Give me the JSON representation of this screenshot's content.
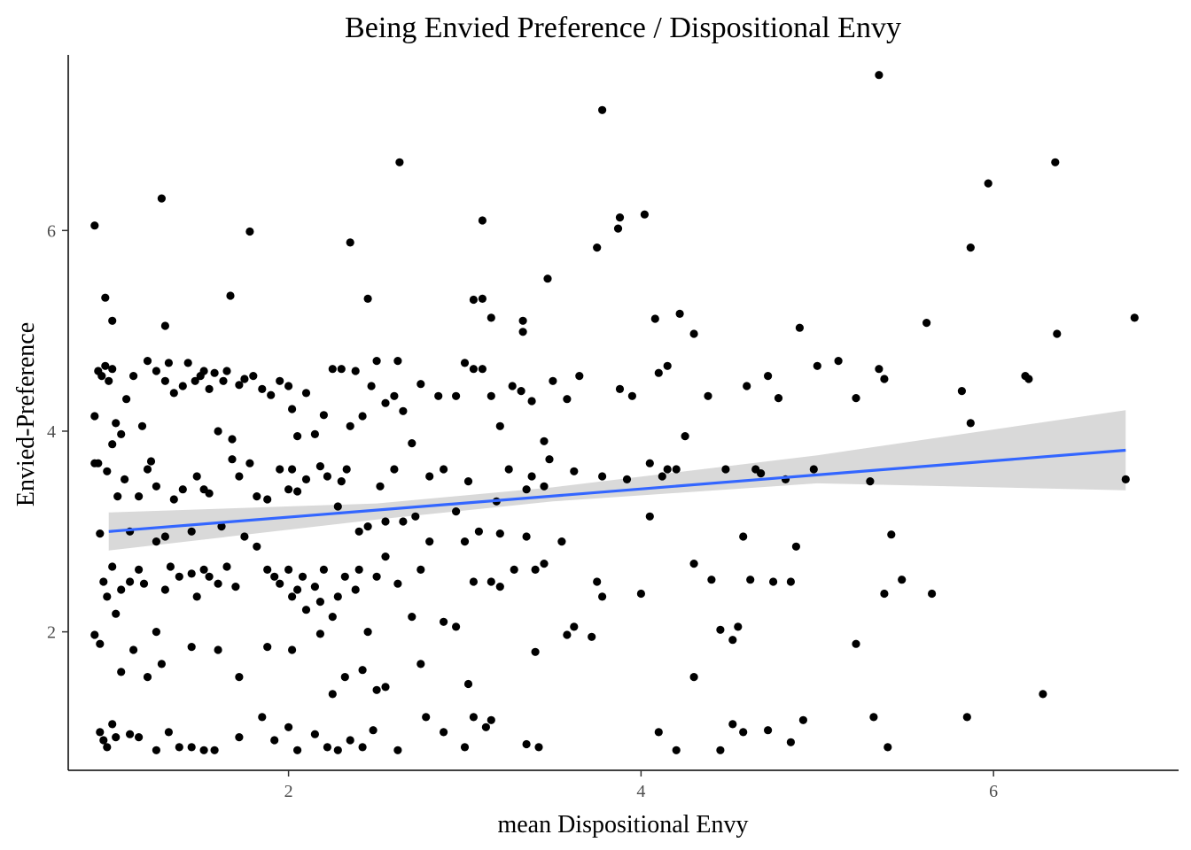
{
  "chart_data": {
    "type": "scatter",
    "title": "Being Envied Preference / Dispositional Envy",
    "xlabel": "mean Dispositional Envy",
    "ylabel": "Envied-Preference",
    "xlim": [
      0.75,
      7.05
    ],
    "ylim": [
      0.62,
      7.75
    ],
    "x_ticks": [
      2,
      4,
      6
    ],
    "y_ticks": [
      2,
      4,
      6
    ],
    "grid": false,
    "colors": {
      "points": "#000000",
      "trend": "#3366ff",
      "ribbon": "#d9d9d9",
      "axis": "#000000"
    },
    "trend_line": {
      "method": "linear",
      "x_range": [
        0.98,
        6.75
      ],
      "y_at_x_range": [
        3.0,
        3.81
      ],
      "confidence_band": {
        "x": [
          0.98,
          2.5,
          3.5,
          5.0,
          6.75
        ],
        "lower": [
          2.81,
          3.12,
          3.3,
          3.48,
          3.41
        ],
        "upper": [
          3.19,
          3.28,
          3.44,
          3.76,
          4.21
        ]
      }
    },
    "points": [
      [
        0.9,
        6.05
      ],
      [
        0.96,
        5.33
      ],
      [
        1.0,
        5.1
      ],
      [
        1.2,
        4.7
      ],
      [
        1.28,
        6.32
      ],
      [
        1.3,
        5.05
      ],
      [
        1.67,
        5.35
      ],
      [
        1.78,
        5.99
      ],
      [
        2.35,
        5.88
      ],
      [
        2.45,
        5.32
      ],
      [
        2.63,
        6.68
      ],
      [
        3.05,
        5.31
      ],
      [
        3.1,
        5.32
      ],
      [
        3.1,
        6.1
      ],
      [
        3.15,
        5.13
      ],
      [
        3.33,
        5.1
      ],
      [
        3.33,
        4.99
      ],
      [
        3.47,
        5.52
      ],
      [
        3.75,
        5.83
      ],
      [
        3.78,
        7.2
      ],
      [
        3.87,
        6.02
      ],
      [
        3.88,
        6.13
      ],
      [
        4.02,
        6.16
      ],
      [
        4.08,
        5.12
      ],
      [
        4.22,
        5.17
      ],
      [
        4.3,
        4.97
      ],
      [
        4.9,
        5.03
      ],
      [
        5.35,
        7.55
      ],
      [
        5.62,
        5.08
      ],
      [
        5.87,
        5.83
      ],
      [
        5.97,
        6.47
      ],
      [
        6.35,
        6.68
      ],
      [
        6.36,
        4.97
      ],
      [
        6.8,
        5.13
      ],
      [
        0.9,
        4.15
      ],
      [
        0.9,
        3.68
      ],
      [
        0.92,
        4.6
      ],
      [
        0.94,
        4.55
      ],
      [
        0.96,
        4.65
      ],
      [
        0.98,
        4.5
      ],
      [
        1.0,
        4.62
      ],
      [
        1.02,
        4.08
      ],
      [
        1.05,
        3.97
      ],
      [
        1.08,
        4.32
      ],
      [
        1.12,
        4.55
      ],
      [
        1.17,
        4.05
      ],
      [
        1.22,
        3.7
      ],
      [
        1.25,
        4.6
      ],
      [
        1.3,
        4.5
      ],
      [
        1.32,
        4.68
      ],
      [
        1.35,
        4.38
      ],
      [
        1.4,
        4.45
      ],
      [
        1.43,
        4.68
      ],
      [
        1.47,
        4.5
      ],
      [
        1.5,
        4.55
      ],
      [
        1.52,
        4.6
      ],
      [
        1.55,
        4.42
      ],
      [
        1.58,
        4.58
      ],
      [
        1.6,
        4.0
      ],
      [
        1.63,
        4.5
      ],
      [
        1.65,
        4.6
      ],
      [
        1.68,
        3.92
      ],
      [
        1.72,
        4.46
      ],
      [
        1.75,
        4.52
      ],
      [
        1.8,
        4.55
      ],
      [
        1.85,
        4.42
      ],
      [
        1.9,
        4.36
      ],
      [
        1.95,
        4.5
      ],
      [
        2.0,
        4.45
      ],
      [
        2.02,
        4.22
      ],
      [
        2.05,
        3.95
      ],
      [
        2.1,
        4.38
      ],
      [
        2.15,
        3.97
      ],
      [
        2.2,
        4.16
      ],
      [
        2.25,
        4.62
      ],
      [
        2.3,
        4.62
      ],
      [
        2.35,
        4.05
      ],
      [
        2.38,
        4.6
      ],
      [
        2.42,
        4.15
      ],
      [
        2.47,
        4.45
      ],
      [
        2.5,
        4.7
      ],
      [
        2.55,
        4.28
      ],
      [
        2.6,
        4.35
      ],
      [
        2.62,
        4.7
      ],
      [
        2.65,
        4.2
      ],
      [
        2.7,
        3.88
      ],
      [
        2.75,
        4.47
      ],
      [
        2.85,
        4.35
      ],
      [
        2.95,
        4.35
      ],
      [
        3.0,
        4.68
      ],
      [
        3.05,
        4.62
      ],
      [
        3.1,
        4.62
      ],
      [
        3.15,
        4.35
      ],
      [
        3.2,
        4.05
      ],
      [
        3.27,
        4.45
      ],
      [
        3.32,
        4.4
      ],
      [
        3.38,
        4.3
      ],
      [
        3.45,
        3.9
      ],
      [
        3.5,
        4.5
      ],
      [
        3.58,
        4.32
      ],
      [
        3.65,
        4.55
      ],
      [
        3.88,
        4.42
      ],
      [
        3.95,
        4.35
      ],
      [
        4.1,
        4.58
      ],
      [
        4.15,
        4.65
      ],
      [
        4.38,
        4.35
      ],
      [
        4.6,
        4.45
      ],
      [
        4.72,
        4.55
      ],
      [
        4.78,
        4.33
      ],
      [
        5.0,
        4.65
      ],
      [
        5.12,
        4.7
      ],
      [
        5.22,
        4.33
      ],
      [
        5.35,
        4.62
      ],
      [
        5.38,
        4.52
      ],
      [
        5.82,
        4.4
      ],
      [
        5.87,
        4.08
      ],
      [
        6.18,
        4.55
      ],
      [
        6.2,
        4.52
      ],
      [
        0.92,
        3.68
      ],
      [
        0.97,
        3.6
      ],
      [
        1.0,
        3.87
      ],
      [
        1.03,
        3.35
      ],
      [
        1.07,
        3.52
      ],
      [
        1.1,
        3.0
      ],
      [
        1.15,
        3.35
      ],
      [
        1.2,
        3.62
      ],
      [
        1.25,
        3.45
      ],
      [
        1.3,
        2.95
      ],
      [
        1.35,
        3.32
      ],
      [
        1.4,
        3.42
      ],
      [
        1.45,
        3.0
      ],
      [
        1.48,
        3.55
      ],
      [
        1.52,
        3.42
      ],
      [
        1.55,
        3.38
      ],
      [
        1.62,
        3.05
      ],
      [
        1.68,
        3.72
      ],
      [
        1.72,
        3.55
      ],
      [
        1.78,
        3.68
      ],
      [
        1.82,
        3.35
      ],
      [
        1.88,
        3.32
      ],
      [
        1.95,
        3.62
      ],
      [
        2.0,
        3.42
      ],
      [
        2.02,
        3.62
      ],
      [
        2.05,
        3.4
      ],
      [
        2.1,
        3.52
      ],
      [
        2.18,
        3.65
      ],
      [
        2.22,
        3.55
      ],
      [
        2.28,
        3.25
      ],
      [
        2.3,
        3.5
      ],
      [
        2.33,
        3.62
      ],
      [
        2.4,
        3.0
      ],
      [
        2.45,
        3.05
      ],
      [
        2.52,
        3.45
      ],
      [
        2.55,
        3.1
      ],
      [
        2.6,
        3.62
      ],
      [
        2.65,
        3.1
      ],
      [
        2.72,
        3.15
      ],
      [
        2.8,
        3.55
      ],
      [
        2.88,
        3.62
      ],
      [
        2.95,
        3.2
      ],
      [
        3.02,
        3.5
      ],
      [
        3.08,
        3.0
      ],
      [
        3.18,
        3.3
      ],
      [
        3.2,
        2.98
      ],
      [
        3.25,
        3.62
      ],
      [
        3.35,
        3.42
      ],
      [
        3.38,
        3.55
      ],
      [
        3.45,
        3.45
      ],
      [
        3.48,
        3.72
      ],
      [
        3.62,
        3.6
      ],
      [
        3.78,
        3.55
      ],
      [
        3.92,
        3.52
      ],
      [
        4.05,
        3.68
      ],
      [
        4.12,
        3.55
      ],
      [
        4.15,
        3.62
      ],
      [
        4.2,
        3.62
      ],
      [
        4.25,
        3.95
      ],
      [
        4.48,
        3.62
      ],
      [
        4.65,
        3.62
      ],
      [
        4.68,
        3.58
      ],
      [
        4.82,
        3.52
      ],
      [
        4.98,
        3.62
      ],
      [
        5.3,
        3.5
      ],
      [
        6.75,
        3.52
      ],
      [
        0.93,
        2.98
      ],
      [
        0.95,
        2.5
      ],
      [
        0.97,
        2.35
      ],
      [
        1.0,
        2.65
      ],
      [
        1.02,
        2.18
      ],
      [
        1.05,
        2.42
      ],
      [
        1.1,
        2.5
      ],
      [
        1.15,
        2.62
      ],
      [
        1.18,
        2.48
      ],
      [
        1.25,
        2.9
      ],
      [
        1.3,
        2.42
      ],
      [
        1.33,
        2.65
      ],
      [
        1.38,
        2.55
      ],
      [
        1.45,
        2.58
      ],
      [
        1.48,
        2.35
      ],
      [
        1.52,
        2.62
      ],
      [
        1.55,
        2.55
      ],
      [
        1.6,
        2.48
      ],
      [
        1.65,
        2.65
      ],
      [
        1.7,
        2.45
      ],
      [
        1.75,
        2.95
      ],
      [
        1.82,
        2.85
      ],
      [
        1.88,
        2.62
      ],
      [
        1.92,
        2.55
      ],
      [
        1.95,
        2.48
      ],
      [
        2.0,
        2.62
      ],
      [
        2.02,
        2.35
      ],
      [
        2.05,
        2.42
      ],
      [
        2.08,
        2.55
      ],
      [
        2.1,
        2.22
      ],
      [
        2.15,
        2.45
      ],
      [
        2.18,
        2.3
      ],
      [
        2.2,
        2.62
      ],
      [
        2.25,
        2.15
      ],
      [
        2.28,
        2.35
      ],
      [
        2.32,
        2.55
      ],
      [
        2.38,
        2.42
      ],
      [
        2.4,
        2.62
      ],
      [
        2.45,
        2.0
      ],
      [
        2.5,
        2.55
      ],
      [
        2.55,
        2.75
      ],
      [
        2.62,
        2.48
      ],
      [
        2.7,
        2.15
      ],
      [
        2.75,
        2.62
      ],
      [
        2.8,
        2.9
      ],
      [
        2.88,
        2.1
      ],
      [
        2.95,
        2.05
      ],
      [
        3.0,
        2.9
      ],
      [
        3.05,
        2.5
      ],
      [
        3.15,
        2.5
      ],
      [
        3.2,
        2.45
      ],
      [
        3.28,
        2.62
      ],
      [
        3.35,
        2.95
      ],
      [
        3.4,
        2.62
      ],
      [
        3.45,
        2.68
      ],
      [
        3.55,
        2.9
      ],
      [
        3.58,
        1.97
      ],
      [
        3.62,
        2.05
      ],
      [
        3.75,
        2.5
      ],
      [
        3.78,
        2.35
      ],
      [
        4.0,
        2.38
      ],
      [
        4.05,
        3.15
      ],
      [
        4.3,
        2.68
      ],
      [
        4.4,
        2.52
      ],
      [
        4.45,
        2.02
      ],
      [
        4.52,
        1.92
      ],
      [
        4.55,
        2.05
      ],
      [
        4.58,
        2.95
      ],
      [
        4.62,
        2.52
      ],
      [
        4.75,
        2.5
      ],
      [
        4.85,
        2.5
      ],
      [
        4.88,
        2.85
      ],
      [
        5.22,
        1.88
      ],
      [
        5.38,
        2.38
      ],
      [
        5.42,
        2.97
      ],
      [
        5.48,
        2.52
      ],
      [
        5.65,
        2.38
      ],
      [
        0.9,
        1.97
      ],
      [
        0.93,
        1.88
      ],
      [
        1.05,
        1.6
      ],
      [
        1.12,
        1.82
      ],
      [
        1.2,
        1.55
      ],
      [
        1.25,
        2.0
      ],
      [
        1.28,
        1.68
      ],
      [
        1.45,
        1.85
      ],
      [
        1.6,
        1.82
      ],
      [
        1.72,
        1.55
      ],
      [
        1.88,
        1.85
      ],
      [
        2.02,
        1.82
      ],
      [
        2.18,
        1.98
      ],
      [
        2.25,
        1.38
      ],
      [
        2.32,
        1.55
      ],
      [
        2.42,
        1.62
      ],
      [
        2.5,
        1.42
      ],
      [
        2.75,
        1.68
      ],
      [
        3.02,
        1.48
      ],
      [
        3.4,
        1.8
      ],
      [
        3.72,
        1.95
      ],
      [
        4.3,
        1.55
      ],
      [
        6.28,
        1.38
      ],
      [
        0.93,
        1.0
      ],
      [
        0.95,
        0.92
      ],
      [
        0.97,
        0.85
      ],
      [
        1.0,
        1.08
      ],
      [
        1.02,
        0.95
      ],
      [
        1.1,
        0.98
      ],
      [
        1.15,
        0.95
      ],
      [
        1.25,
        0.82
      ],
      [
        1.32,
        1.0
      ],
      [
        1.38,
        0.85
      ],
      [
        1.45,
        0.85
      ],
      [
        1.52,
        0.82
      ],
      [
        1.58,
        0.82
      ],
      [
        1.72,
        0.95
      ],
      [
        1.85,
        1.15
      ],
      [
        1.92,
        0.92
      ],
      [
        2.0,
        1.05
      ],
      [
        2.05,
        0.82
      ],
      [
        2.15,
        0.98
      ],
      [
        2.22,
        0.85
      ],
      [
        2.28,
        0.82
      ],
      [
        2.35,
        0.92
      ],
      [
        2.42,
        0.85
      ],
      [
        2.48,
        1.02
      ],
      [
        2.55,
        1.45
      ],
      [
        2.62,
        0.82
      ],
      [
        2.78,
        1.15
      ],
      [
        2.88,
        1.0
      ],
      [
        3.0,
        0.85
      ],
      [
        3.05,
        1.15
      ],
      [
        3.12,
        1.05
      ],
      [
        3.15,
        1.12
      ],
      [
        3.35,
        0.88
      ],
      [
        3.42,
        0.85
      ],
      [
        4.1,
        1.0
      ],
      [
        4.2,
        0.82
      ],
      [
        4.45,
        0.82
      ],
      [
        4.52,
        1.08
      ],
      [
        4.58,
        1.0
      ],
      [
        4.72,
        1.02
      ],
      [
        4.85,
        0.9
      ],
      [
        4.92,
        1.12
      ],
      [
        5.32,
        1.15
      ],
      [
        5.4,
        0.85
      ],
      [
        5.85,
        1.15
      ]
    ]
  }
}
